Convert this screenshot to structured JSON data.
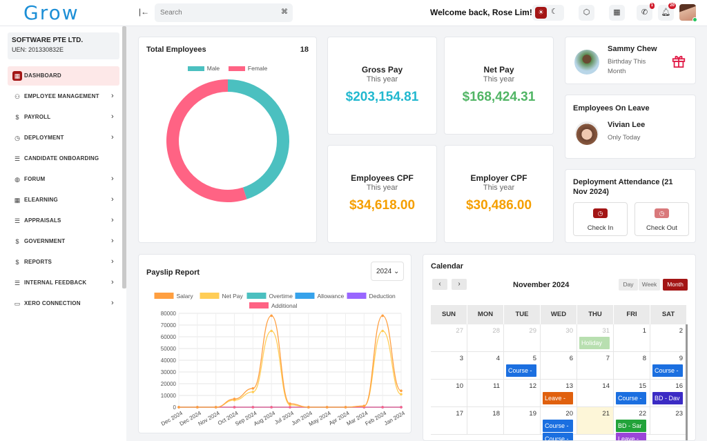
{
  "brand": {
    "logo": "Grow"
  },
  "topbar": {
    "search_placeholder": "Search",
    "search_shortcut": "⌘",
    "welcome": "Welcome back, Rose Lim!",
    "notifications_badge": "1",
    "alerts_badge": "20"
  },
  "company": {
    "name": "SOFTWARE PTE LTD.",
    "uen": "UEN: 201330832E"
  },
  "sidebar": {
    "items": [
      {
        "label": "DASHBOARD",
        "icon": "dashboard-icon",
        "glyph": "▦",
        "arrow": false,
        "active": true
      },
      {
        "label": "EMPLOYEE MANAGEMENT",
        "icon": "users-icon",
        "glyph": "⚇",
        "arrow": true
      },
      {
        "label": "PAYROLL",
        "icon": "dollar-icon",
        "glyph": "$",
        "arrow": true
      },
      {
        "label": "DEPLOYMENT",
        "icon": "clock-icon",
        "glyph": "◷",
        "arrow": true
      },
      {
        "label": "CANDIDATE ONBOARDING",
        "icon": "list-icon",
        "glyph": "☰",
        "arrow": false
      },
      {
        "label": "FORUM",
        "icon": "chat-icon",
        "glyph": "◍",
        "arrow": true
      },
      {
        "label": "ELEARNING",
        "icon": "grid-icon",
        "glyph": "▦",
        "arrow": true
      },
      {
        "label": "APPRAISALS",
        "icon": "list-icon",
        "glyph": "☰",
        "arrow": true
      },
      {
        "label": "GOVERNMENT",
        "icon": "dollar-icon",
        "glyph": "$",
        "arrow": true
      },
      {
        "label": "REPORTS",
        "icon": "dollar-icon",
        "glyph": "$",
        "arrow": true
      },
      {
        "label": "INTERNAL FEEDBACK",
        "icon": "list-icon",
        "glyph": "☰",
        "arrow": true
      },
      {
        "label": "XERO CONNECTION",
        "icon": "card-icon",
        "glyph": "▭",
        "arrow": true
      }
    ]
  },
  "total_employees": {
    "title": "Total Employees",
    "count": "18",
    "legend": [
      {
        "name": "Male",
        "color": "#4bc0c0"
      },
      {
        "name": "Female",
        "color": "#ff6384"
      }
    ],
    "male_fraction": 0.45
  },
  "stats": [
    {
      "title": "Gross Pay",
      "sub": "This year",
      "value": "$203,154.81",
      "color": "#22b8cf"
    },
    {
      "title": "Net Pay",
      "sub": "This year",
      "value": "$168,424.31",
      "color": "#51b565"
    },
    {
      "title": "Employees CPF",
      "sub": "This year",
      "value": "$34,618.00",
      "color": "#f59f00"
    },
    {
      "title": "Employer CPF",
      "sub": "This year",
      "value": "$30,486.00",
      "color": "#f59f00"
    }
  ],
  "birthday": {
    "name": "Sammy Chew",
    "sub": "Birthday This Month"
  },
  "leave": {
    "title": "Employees On Leave",
    "name": "Vivian Lee",
    "sub": "Only Today"
  },
  "attendance": {
    "title": "Deployment Attendance (21 Nov 2024)",
    "check_in": "Check In",
    "check_out": "Check Out"
  },
  "payslip": {
    "title": "Payslip Report",
    "year": "2024"
  },
  "chart_data": {
    "type": "line",
    "title": "Payslip Report",
    "categories": [
      "Dec 2024",
      "Dec 2024",
      "Nov 2024",
      "Oct 2024",
      "Sep 2024",
      "Aug 2024",
      "Jul 2024",
      "Jun 2024",
      "May 2024",
      "Apr 2024",
      "Mar 2024",
      "Feb 2024",
      "Jan 2024"
    ],
    "y_ticks": [
      0,
      10000,
      20000,
      30000,
      40000,
      50000,
      60000,
      70000,
      80000
    ],
    "ylim": [
      0,
      80000
    ],
    "series": [
      {
        "name": "Salary",
        "color": "#ff9f40",
        "values": [
          0,
          0,
          0,
          7000,
          16000,
          78000,
          3000,
          0,
          0,
          0,
          1000,
          78000,
          14000
        ]
      },
      {
        "name": "Net Pay",
        "color": "#ffcd56",
        "values": [
          0,
          0,
          0,
          6000,
          13000,
          65000,
          2000,
          0,
          0,
          0,
          1000,
          65000,
          11000
        ]
      },
      {
        "name": "Overtime",
        "color": "#4bc0c0",
        "values": [
          0,
          0,
          0,
          0,
          0,
          0,
          0,
          0,
          0,
          0,
          0,
          0,
          0
        ]
      },
      {
        "name": "Allowance",
        "color": "#36a2eb",
        "values": [
          0,
          0,
          0,
          0,
          0,
          0,
          0,
          0,
          0,
          0,
          0,
          0,
          0
        ]
      },
      {
        "name": "Deduction",
        "color": "#9966ff",
        "values": [
          0,
          0,
          0,
          0,
          0,
          0,
          0,
          0,
          0,
          0,
          0,
          0,
          0
        ]
      },
      {
        "name": "Additional",
        "color": "#ff6384",
        "values": [
          0,
          0,
          0,
          0,
          0,
          0,
          0,
          0,
          0,
          0,
          0,
          0,
          0
        ]
      }
    ]
  },
  "calendar": {
    "title": "Calendar",
    "month": "November 2024",
    "views": [
      "Day",
      "Week",
      "Month"
    ],
    "active_view": "Month",
    "weekdays": [
      "SUN",
      "MON",
      "TUE",
      "WED",
      "THU",
      "FRI",
      "SAT"
    ],
    "weeks": [
      [
        {
          "d": "27",
          "m": true
        },
        {
          "d": "28",
          "m": true
        },
        {
          "d": "29",
          "m": true
        },
        {
          "d": "30",
          "m": true
        },
        {
          "d": "31",
          "m": true
        },
        {
          "d": "1"
        },
        {
          "d": "2"
        }
      ],
      [
        {
          "d": "3"
        },
        {
          "d": "4"
        },
        {
          "d": "5"
        },
        {
          "d": "6"
        },
        {
          "d": "7"
        },
        {
          "d": "8"
        },
        {
          "d": "9"
        }
      ],
      [
        {
          "d": "10"
        },
        {
          "d": "11"
        },
        {
          "d": "12"
        },
        {
          "d": "13"
        },
        {
          "d": "14"
        },
        {
          "d": "15"
        },
        {
          "d": "16"
        }
      ],
      [
        {
          "d": "17"
        },
        {
          "d": "18"
        },
        {
          "d": "19"
        },
        {
          "d": "20"
        },
        {
          "d": "21",
          "today": true
        },
        {
          "d": "22"
        },
        {
          "d": "23"
        }
      ]
    ],
    "events": [
      {
        "label": "Holiday",
        "week": 0,
        "day": 4,
        "slot": 0,
        "color": "#b8dfb0"
      },
      {
        "label": "Course -",
        "week": 1,
        "day": 2,
        "slot": 0,
        "color": "#1b6fe0"
      },
      {
        "label": "Course -",
        "week": 1,
        "day": 6,
        "slot": 0,
        "color": "#1b6fe0"
      },
      {
        "label": "Leave -",
        "week": 2,
        "day": 3,
        "slot": 0,
        "color": "#e0600e"
      },
      {
        "label": "Course -",
        "week": 2,
        "day": 5,
        "slot": 0,
        "color": "#1b6fe0"
      },
      {
        "label": "BD - Dav",
        "week": 2,
        "day": 6,
        "slot": 0,
        "color": "#3b2bc4"
      },
      {
        "label": "Course -",
        "week": 3,
        "day": 3,
        "slot": 0,
        "color": "#1b6fe0"
      },
      {
        "label": "Course -",
        "week": 3,
        "day": 3,
        "slot": 1,
        "color": "#1b6fe0"
      },
      {
        "label": "BD - Sar",
        "week": 3,
        "day": 5,
        "slot": 0,
        "color": "#22a33a"
      },
      {
        "label": "Leave -",
        "week": 3,
        "day": 5,
        "slot": 1,
        "color": "#9b45d8"
      }
    ]
  }
}
